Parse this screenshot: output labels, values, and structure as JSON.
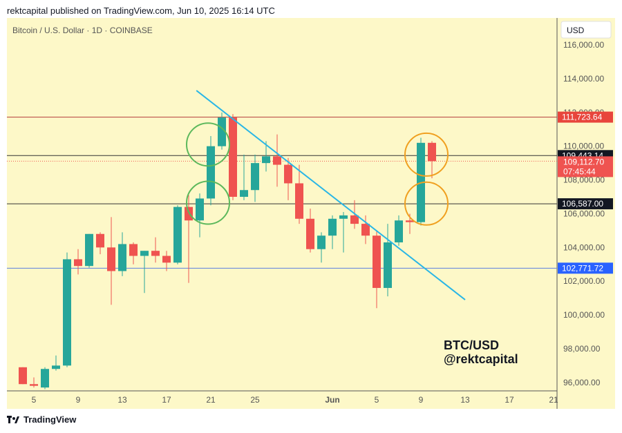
{
  "header": {
    "published": "rektcapital published on TradingView.com, Jun 10, 2025 16:14 UTC"
  },
  "footer": {
    "brand": "TradingView"
  },
  "colors": {
    "background": "#fdf8c8",
    "up": "#26a69a",
    "down": "#ef5350",
    "trendline": "#29b6e6",
    "green_circle": "#5cb85c",
    "orange_circle": "#f0a020",
    "resistance": "#b33a3a",
    "support": "#5b7fe0"
  },
  "chart_data": {
    "type": "candlestick",
    "title": "Bitcoin / U.S. Dollar · 1D · COINBASE",
    "currency": "USD",
    "ylim": [
      95500,
      117600
    ],
    "y_ticks": [
      96000,
      98000,
      100000,
      102000,
      104000,
      106000,
      108000,
      110000,
      112000,
      114000,
      116000
    ],
    "y_tick_labels": [
      "96,000.00",
      "98,000.00",
      "100,000.00",
      "102,000.00",
      "104,000.00",
      "106,000.00",
      "108,000.00",
      "110,000.00",
      "112,000.00",
      "114,000.00",
      "116,000.00"
    ],
    "x_tick_labels": [
      "5",
      "9",
      "13",
      "17",
      "21",
      "25",
      "Jun",
      "5",
      "9",
      "13",
      "17",
      "21"
    ],
    "x_tick_dates": [
      "2025-05-05",
      "2025-05-09",
      "2025-05-13",
      "2025-05-17",
      "2025-05-21",
      "2025-05-25",
      "2025-06-01",
      "2025-06-05",
      "2025-06-09",
      "2025-06-13",
      "2025-06-17",
      "2025-06-21"
    ],
    "candles": [
      {
        "date": "2025-05-04",
        "o": 96900,
        "h": 96900,
        "l": 95900,
        "c": 95900
      },
      {
        "date": "2025-05-05",
        "o": 95900,
        "h": 96300,
        "l": 95700,
        "c": 95800
      },
      {
        "date": "2025-05-06",
        "o": 95700,
        "h": 96900,
        "l": 95600,
        "c": 96800
      },
      {
        "date": "2025-05-07",
        "o": 96800,
        "h": 97600,
        "l": 96700,
        "c": 97000
      },
      {
        "date": "2025-05-08",
        "o": 97000,
        "h": 103700,
        "l": 96900,
        "c": 103300
      },
      {
        "date": "2025-05-09",
        "o": 103300,
        "h": 103900,
        "l": 102400,
        "c": 102900
      },
      {
        "date": "2025-05-10",
        "o": 102900,
        "h": 104800,
        "l": 102800,
        "c": 104800
      },
      {
        "date": "2025-05-11",
        "o": 104800,
        "h": 104900,
        "l": 103600,
        "c": 104000
      },
      {
        "date": "2025-05-12",
        "o": 104000,
        "h": 105800,
        "l": 100600,
        "c": 102600
      },
      {
        "date": "2025-05-13",
        "o": 102600,
        "h": 104900,
        "l": 102300,
        "c": 104200
      },
      {
        "date": "2025-05-14",
        "o": 104200,
        "h": 104300,
        "l": 103000,
        "c": 103500
      },
      {
        "date": "2025-05-15",
        "o": 103500,
        "h": 103800,
        "l": 101300,
        "c": 103800
      },
      {
        "date": "2025-05-16",
        "o": 103800,
        "h": 104600,
        "l": 103100,
        "c": 103500
      },
      {
        "date": "2025-05-17",
        "o": 103500,
        "h": 103800,
        "l": 102600,
        "c": 103100
      },
      {
        "date": "2025-05-18",
        "o": 103100,
        "h": 106500,
        "l": 103000,
        "c": 106400
      },
      {
        "date": "2025-05-19",
        "o": 106400,
        "h": 107100,
        "l": 101900,
        "c": 105600
      },
      {
        "date": "2025-05-20",
        "o": 105600,
        "h": 107200,
        "l": 104600,
        "c": 106900
      },
      {
        "date": "2025-05-21",
        "o": 106900,
        "h": 110600,
        "l": 106500,
        "c": 110000
      },
      {
        "date": "2025-05-22",
        "o": 110000,
        "h": 112000,
        "l": 109800,
        "c": 111700
      },
      {
        "date": "2025-05-23",
        "o": 111700,
        "h": 111900,
        "l": 106800,
        "c": 107000
      },
      {
        "date": "2025-05-24",
        "o": 107000,
        "h": 109500,
        "l": 106800,
        "c": 107400
      },
      {
        "date": "2025-05-25",
        "o": 107400,
        "h": 109500,
        "l": 106700,
        "c": 109000
      },
      {
        "date": "2025-05-26",
        "o": 109000,
        "h": 110300,
        "l": 108500,
        "c": 109400
      },
      {
        "date": "2025-05-27",
        "o": 109400,
        "h": 110700,
        "l": 107600,
        "c": 108900
      },
      {
        "date": "2025-05-28",
        "o": 108900,
        "h": 109300,
        "l": 106800,
        "c": 107800
      },
      {
        "date": "2025-05-29",
        "o": 107800,
        "h": 108900,
        "l": 105400,
        "c": 105700
      },
      {
        "date": "2025-05-30",
        "o": 105700,
        "h": 106300,
        "l": 103700,
        "c": 103900
      },
      {
        "date": "2025-05-31",
        "o": 103900,
        "h": 104900,
        "l": 103100,
        "c": 104700
      },
      {
        "date": "2025-06-01",
        "o": 104700,
        "h": 105900,
        "l": 103900,
        "c": 105700
      },
      {
        "date": "2025-06-02",
        "o": 105700,
        "h": 106100,
        "l": 103700,
        "c": 105900
      },
      {
        "date": "2025-06-03",
        "o": 105900,
        "h": 106800,
        "l": 105100,
        "c": 105400
      },
      {
        "date": "2025-06-04",
        "o": 105400,
        "h": 105900,
        "l": 104200,
        "c": 104700
      },
      {
        "date": "2025-06-05",
        "o": 104700,
        "h": 105000,
        "l": 100400,
        "c": 101600
      },
      {
        "date": "2025-06-06",
        "o": 101600,
        "h": 105400,
        "l": 101100,
        "c": 104300
      },
      {
        "date": "2025-06-07",
        "o": 104300,
        "h": 105900,
        "l": 104100,
        "c": 105600
      },
      {
        "date": "2025-06-08",
        "o": 105600,
        "h": 106000,
        "l": 104800,
        "c": 105500
      },
      {
        "date": "2025-06-09",
        "o": 105500,
        "h": 110500,
        "l": 105300,
        "c": 110200
      },
      {
        "date": "2025-06-10",
        "o": 110200,
        "h": 110300,
        "l": 108100,
        "c": 109113
      }
    ],
    "levels": [
      {
        "value": 111723.64,
        "label": "111,723.64",
        "color": "#b33a3a",
        "tag_bg": "#e8453c",
        "tag_color": "#ffffff"
      },
      {
        "value": 109443.14,
        "label": "109,443.14",
        "color": "#333333",
        "tag_bg": "#131722",
        "tag_color": "#ffffff"
      },
      {
        "value": 106587.0,
        "label": "106,587.00",
        "color": "#333333",
        "tag_bg": "#131722",
        "tag_color": "#ffffff"
      },
      {
        "value": 102771.72,
        "label": "102,771.72",
        "color": "#5b7fe0",
        "tag_bg": "#2962ff",
        "tag_color": "#ffffff"
      }
    ],
    "current_price": {
      "value": 109112.7,
      "label": "109,112.70",
      "countdown": "07:45:44",
      "color": "#ef5350"
    },
    "trendline": {
      "start": {
        "date": "2025-05-19.7",
        "value": 113300
      },
      "end": {
        "date": "2025-06-13",
        "value": 100900
      }
    },
    "annotations": {
      "line1": "BTC/USD",
      "line2": "@rektcapital"
    }
  }
}
